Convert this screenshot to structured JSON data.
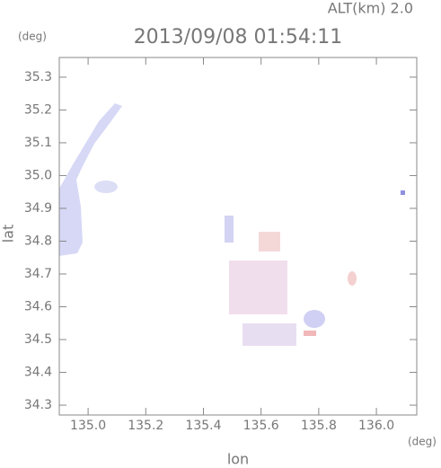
{
  "chart_data": {
    "type": "map",
    "title": "2013/09/08 01:54:11",
    "annotation": "ALT(km) 2.0",
    "y_unit": "(deg)",
    "x_unit": "(deg)",
    "xlabel": "lon",
    "ylabel": "lat",
    "xlim": [
      134.9,
      136.14
    ],
    "ylim": [
      34.27,
      35.36
    ],
    "xticks": [
      {
        "value": 135,
        "label": "135.0"
      },
      135.2,
      135.4,
      135.6,
      135.8,
      {
        "value": 136,
        "label": "136.0"
      }
    ],
    "yticks": [
      34.3,
      34.4,
      34.5,
      34.6,
      34.7,
      34.8,
      34.9,
      {
        "value": 35,
        "label": "35.0"
      },
      35.1,
      35.2,
      35.3
    ]
  }
}
